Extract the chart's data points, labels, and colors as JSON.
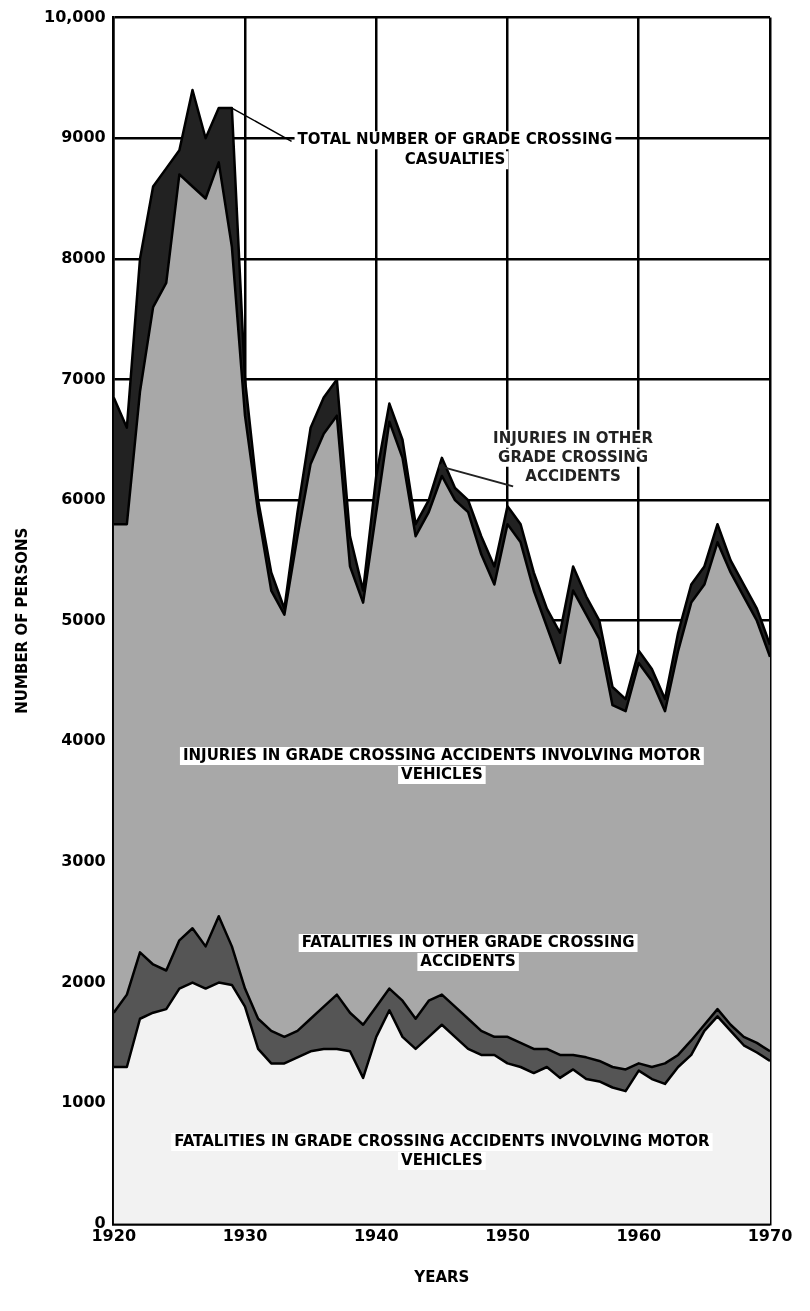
{
  "chart_data": {
    "type": "area",
    "stacked": true,
    "xlabel": "YEARS",
    "ylabel": "NUMBER OF PERSONS",
    "x": [
      1920,
      1921,
      1922,
      1923,
      1924,
      1925,
      1926,
      1927,
      1928,
      1929,
      1930,
      1931,
      1932,
      1933,
      1934,
      1935,
      1936,
      1937,
      1938,
      1939,
      1940,
      1941,
      1942,
      1943,
      1944,
      1945,
      1946,
      1947,
      1948,
      1949,
      1950,
      1951,
      1952,
      1953,
      1954,
      1955,
      1956,
      1957,
      1958,
      1959,
      1960,
      1961,
      1962,
      1963,
      1964,
      1965,
      1966,
      1967,
      1968,
      1969,
      1970
    ],
    "xlim": [
      1920,
      1970
    ],
    "xticks": [
      1920,
      1930,
      1940,
      1950,
      1960,
      1970
    ],
    "ylim": [
      0,
      10000
    ],
    "yticks": [
      0,
      1000,
      2000,
      3000,
      4000,
      5000,
      6000,
      7000,
      8000,
      9000,
      {
        "value": 10000,
        "label": "10,000"
      }
    ],
    "grid": true,
    "legend": false,
    "marker": "none",
    "series": [
      {
        "name": "FATALITIES IN GRADE CROSSING ACCIDENTS INVOLVING MOTOR VEHICLES",
        "color": "#f2f2f2",
        "values": [
          1300,
          1300,
          1700,
          1750,
          1780,
          1950,
          2000,
          1950,
          2000,
          1980,
          1800,
          1450,
          1330,
          1330,
          1380,
          1430,
          1450,
          1450,
          1430,
          1210,
          1550,
          1770,
          1550,
          1450,
          1550,
          1650,
          1550,
          1450,
          1400,
          1400,
          1330,
          1300,
          1250,
          1300,
          1210,
          1280,
          1200,
          1180,
          1130,
          1100,
          1270,
          1200,
          1160,
          1300,
          1400,
          1600,
          1720,
          1600,
          1480,
          1420,
          1350
        ]
      },
      {
        "name": "FATALITIES IN OTHER GRADE CROSSING ACCIDENTS",
        "color": "#555555",
        "values": [
          450,
          600,
          550,
          400,
          320,
          400,
          450,
          350,
          550,
          320,
          150,
          250,
          270,
          220,
          220,
          270,
          350,
          450,
          320,
          440,
          250,
          180,
          300,
          250,
          300,
          250,
          250,
          250,
          200,
          150,
          220,
          200,
          200,
          150,
          190,
          120,
          180,
          170,
          170,
          180,
          60,
          100,
          170,
          100,
          120,
          50,
          60,
          50,
          70,
          80,
          80
        ]
      },
      {
        "name": "INJURIES IN GRADE CROSSING ACCIDENTS INVOLVING MOTOR VEHICLES",
        "color": "#a8a8a8",
        "values": [
          4050,
          3900,
          4650,
          5450,
          5700,
          6350,
          6150,
          6200,
          6250,
          5800,
          4750,
          4200,
          3650,
          3500,
          4100,
          4600,
          4750,
          4800,
          3700,
          3500,
          4100,
          4700,
          4500,
          4000,
          4050,
          4300,
          4200,
          4200,
          3950,
          3750,
          4250,
          4150,
          3800,
          3500,
          3250,
          3850,
          3670,
          3500,
          3000,
          2970,
          3320,
          3200,
          2920,
          3350,
          3630,
          3650,
          3870,
          3750,
          3650,
          3500,
          3270
        ]
      },
      {
        "name": "INJURIES IN OTHER GRADE CROSSING ACCIDENTS",
        "color": "#222222",
        "values": [
          1050,
          800,
          1100,
          1000,
          950,
          200,
          800,
          500,
          450,
          1150,
          300,
          100,
          150,
          50,
          200,
          300,
          300,
          300,
          250,
          100,
          300,
          150,
          150,
          100,
          100,
          150,
          100,
          100,
          150,
          150,
          150,
          150,
          150,
          150,
          250,
          200,
          150,
          150,
          150,
          100,
          100,
          100,
          100,
          150,
          150,
          150,
          150,
          100,
          100,
          100,
          100
        ]
      }
    ],
    "annotations": [
      {
        "text": "TOTAL NUMBER OF GRADE CROSSING CASUALTIES",
        "x": 1929,
        "y": 9250
      }
    ]
  }
}
